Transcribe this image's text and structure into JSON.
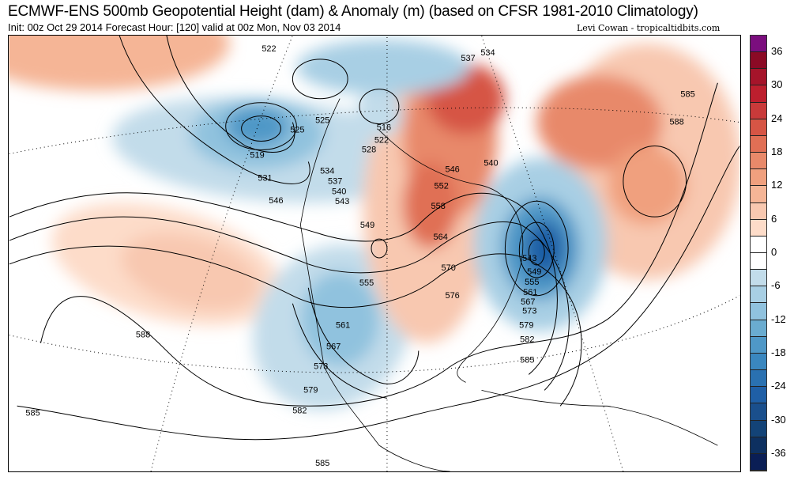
{
  "header": {
    "title": "ECMWF-ENS 500mb Geopotential Height (dam) & Anomaly (m) (based on CFSR 1981-2010 Climatology)",
    "subtitle": "Init: 00z Oct 29 2014 Forecast Hour: [120] valid at 00z Mon, Nov 03 2014",
    "credit": "Levi Cowan - tropicaltidbits.com"
  },
  "colorbar": {
    "ticks": [
      "36",
      "30",
      "24",
      "18",
      "12",
      "6",
      "0",
      "-6",
      "-12",
      "-18",
      "-24",
      "-30",
      "-36"
    ],
    "colors": [
      "#7b0e7e",
      "#8b0a25",
      "#a5142a",
      "#bd1f2e",
      "#c93a3a",
      "#d65545",
      "#e06f55",
      "#e8896a",
      "#f0a07e",
      "#f5b596",
      "#f8c8b0",
      "#fddcc9",
      "#ffffff",
      "#ffffff",
      "#c2dcea",
      "#a8cfe4",
      "#90c2de",
      "#6aacd0",
      "#4f98c7",
      "#3a87bf",
      "#2a71b1",
      "#1f5fa6",
      "#1a4f8c",
      "#134377",
      "#0d3060",
      "#0a1e55"
    ]
  },
  "contour_labels": [
    "522",
    "537",
    "534",
    "585",
    "588",
    "525",
    "525",
    "516",
    "522",
    "528",
    "519",
    "531",
    "534",
    "537",
    "540",
    "543",
    "546",
    "546",
    "540",
    "552",
    "558",
    "549",
    "564",
    "570",
    "543",
    "549",
    "555",
    "555",
    "561",
    "567",
    "573",
    "576",
    "579",
    "582",
    "585",
    "561",
    "567",
    "573",
    "579",
    "582",
    "588",
    "585",
    "585"
  ]
}
